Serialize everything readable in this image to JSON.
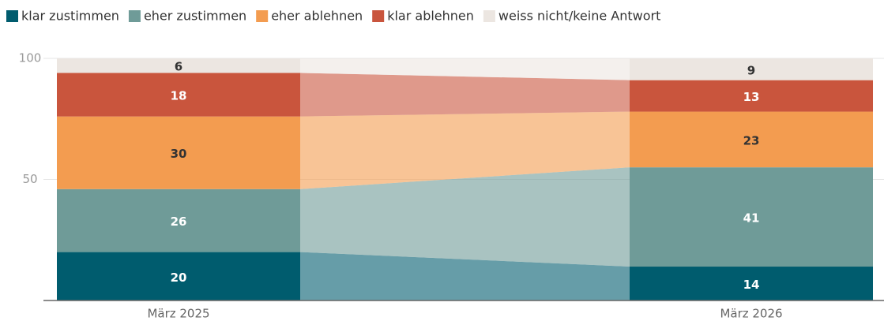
{
  "chart_data": {
    "type": "stacked_bar",
    "categories": [
      "März 2025",
      "März 2026"
    ],
    "series": [
      {
        "name": "klar zustimmen",
        "color": "#005c6e",
        "label_color": "#ffffff",
        "values": [
          20,
          14
        ]
      },
      {
        "name": "eher zustimmen",
        "color": "#6f9b98",
        "label_color": "#ffffff",
        "values": [
          26,
          41
        ]
      },
      {
        "name": "eher ablehnen",
        "color": "#f39c50",
        "label_color": "#333333",
        "values": [
          30,
          23
        ]
      },
      {
        "name": "klar ablehnen",
        "color": "#c9553d",
        "label_color": "#ffffff",
        "values": [
          18,
          13
        ]
      },
      {
        "name": "weiss nicht/keine Antwort",
        "color": "#ece6e1",
        "label_color": "#333333",
        "values": [
          6,
          9
        ]
      }
    ],
    "ylim": [
      0,
      100
    ],
    "yticks": [
      50,
      100
    ],
    "grid": true,
    "legend": "top"
  }
}
